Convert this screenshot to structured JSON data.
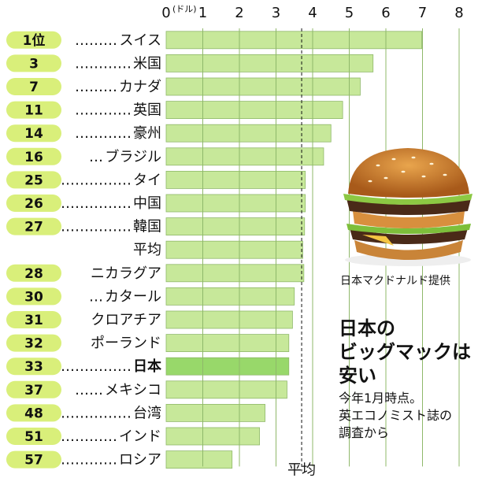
{
  "chart_data": {
    "type": "bar",
    "orientation": "horizontal",
    "x_unit": "ドル",
    "xlim": [
      0,
      8
    ],
    "xticks": [
      "0",
      "1",
      "2",
      "3",
      "4",
      "5",
      "6",
      "7",
      "8"
    ],
    "average_value": 3.7,
    "rows": [
      {
        "rank": "1位",
        "label": "スイス",
        "dots": "………",
        "value": 6.98
      },
      {
        "rank": "3",
        "label": "米国",
        "dots": "…………",
        "value": 5.65
      },
      {
        "rank": "7",
        "label": "カナダ",
        "dots": "………",
        "value": 5.3
      },
      {
        "rank": "11",
        "label": "英国",
        "dots": "…………",
        "value": 4.82
      },
      {
        "rank": "14",
        "label": "豪州",
        "dots": "…………",
        "value": 4.5
      },
      {
        "rank": "16",
        "label": "ブラジル",
        "dots": "…",
        "value": 4.3
      },
      {
        "rank": "25",
        "label": "タイ",
        "dots": "……………",
        "value": 3.8
      },
      {
        "rank": "26",
        "label": "中国",
        "dots": "……………",
        "value": 3.8
      },
      {
        "rank": "27",
        "label": "韓国",
        "dots": "……………",
        "value": 3.78
      },
      {
        "rank": "",
        "label": "平均",
        "dots": "",
        "value": 3.73,
        "is_average": true
      },
      {
        "rank": "28",
        "label": "ニカラグア",
        "dots": "",
        "value": 3.76
      },
      {
        "rank": "30",
        "label": "カタール",
        "dots": "…",
        "value": 3.5
      },
      {
        "rank": "31",
        "label": "クロアチア",
        "dots": "",
        "value": 3.45
      },
      {
        "rank": "32",
        "label": "ポーランド",
        "dots": "",
        "value": 3.35
      },
      {
        "rank": "33",
        "label": "日本",
        "dots": "……………",
        "value": 3.35,
        "highlight": true
      },
      {
        "rank": "37",
        "label": "メキシコ",
        "dots": "……",
        "value": 3.3
      },
      {
        "rank": "48",
        "label": "台湾",
        "dots": "……………",
        "value": 2.7
      },
      {
        "rank": "51",
        "label": "インド",
        "dots": "…………",
        "value": 2.55
      },
      {
        "rank": "57",
        "label": "ロシア",
        "dots": "…………",
        "value": 1.8
      }
    ],
    "average_label": "平均"
  },
  "photo_credit": "日本マクドナルド提供",
  "headline": [
    "日本の",
    "ビッグマックは",
    "安い"
  ],
  "note": [
    "今年1月時点。",
    "英エコノミスト誌の",
    "調査から"
  ],
  "colors": {
    "bar": "#c7e89a",
    "bar_highlight": "#98d86a",
    "rank_pill": "#d9ef7a",
    "grid": "#8fb86a"
  }
}
